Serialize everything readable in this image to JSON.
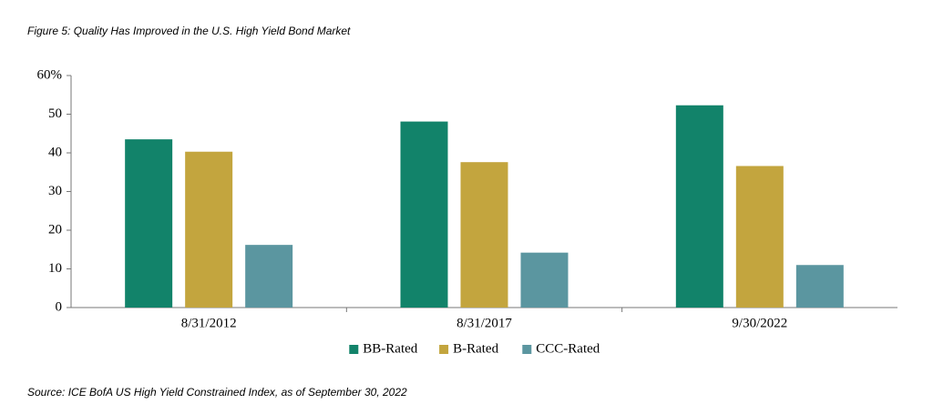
{
  "chart_data": {
    "type": "bar",
    "title": "Figure 5: Quality Has Improved in the U.S. High Yield Bond Market",
    "source": "Source: ICE BofA US High Yield Constrained Index, as of September 30, 2022",
    "categories": [
      "8/31/2012",
      "8/31/2017",
      "9/30/2022"
    ],
    "series": [
      {
        "name": "BB-Rated",
        "color": "#12836a",
        "values": [
          43.5,
          48.1,
          52.3
        ]
      },
      {
        "name": "B-Rated",
        "color": "#c3a53e",
        "values": [
          40.3,
          37.6,
          36.6
        ]
      },
      {
        "name": "CCC-Rated",
        "color": "#5b96a0",
        "values": [
          16.2,
          14.2,
          11.0
        ]
      }
    ],
    "ylim": [
      0,
      60
    ],
    "yticks": [
      0,
      10,
      20,
      30,
      40,
      50,
      {
        "value": 60,
        "label": "60%"
      }
    ],
    "grid": false,
    "legend": "bottom"
  }
}
